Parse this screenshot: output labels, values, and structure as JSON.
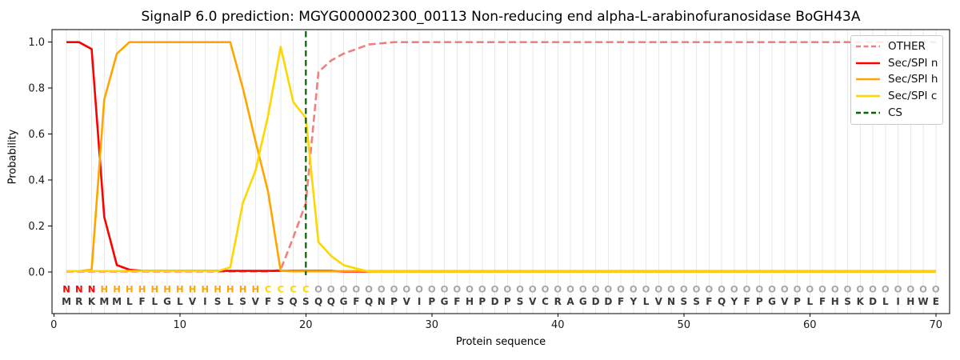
{
  "title": "SignalP 6.0 prediction: MGYG000002300_00113 Non-reducing end alpha-L-arabinofuranosidase BoGH43A",
  "chart_data": {
    "type": "line",
    "title": "SignalP 6.0 prediction: MGYG000002300_00113 Non-reducing end alpha-L-arabinofuranosidase BoGH43A",
    "xlabel": "Protein sequence",
    "ylabel": "Probability",
    "xticks": [
      0,
      10,
      20,
      30,
      40,
      50,
      60,
      70
    ],
    "ytick_labels": [
      "0.0",
      "0.2",
      "0.4",
      "0.6",
      "0.8",
      "1.0"
    ],
    "xlim": [
      -0.15,
      71.2
    ],
    "ylim": [
      -0.18,
      1.05
    ],
    "grid": "vertical gridline at every residue position, light gray, no horizontal grid",
    "legend_position": "upper right",
    "x": [
      1,
      2,
      3,
      4,
      5,
      6,
      7,
      8,
      9,
      10,
      11,
      12,
      13,
      14,
      15,
      16,
      17,
      18,
      19,
      20,
      21,
      22,
      23,
      24,
      25,
      26,
      27,
      28,
      29,
      30,
      31,
      32,
      33,
      34,
      35,
      36,
      37,
      38,
      39,
      40,
      41,
      42,
      43,
      44,
      45,
      46,
      47,
      48,
      49,
      50,
      51,
      52,
      53,
      54,
      55,
      56,
      57,
      58,
      59,
      60,
      61,
      62,
      63,
      64,
      65,
      66,
      67,
      68,
      69,
      70
    ],
    "series": [
      {
        "name": "OTHER",
        "color": "#f08080",
        "style": "dashed",
        "values": [
          0.002,
          0.002,
          0.002,
          0.002,
          0.002,
          0.002,
          0.002,
          0.002,
          0.002,
          0.002,
          0.002,
          0.002,
          0.002,
          0.002,
          0.002,
          0.002,
          0.002,
          0.01,
          0.15,
          0.3,
          0.87,
          0.92,
          0.95,
          0.97,
          0.99,
          0.995,
          1,
          1,
          1,
          1,
          1,
          1,
          1,
          1,
          1,
          1,
          1,
          1,
          1,
          1,
          1,
          1,
          1,
          1,
          1,
          1,
          1,
          1,
          1,
          1,
          1,
          1,
          1,
          1,
          1,
          1,
          1,
          1,
          1,
          1,
          1,
          1,
          1,
          1,
          1,
          1,
          1,
          1,
          1,
          1
        ]
      },
      {
        "name": "Sec/SPI n",
        "color": "#ff0000",
        "style": "solid",
        "values": [
          1,
          1,
          0.97,
          0.24,
          0.03,
          0.01,
          0.005,
          0.005,
          0.005,
          0.005,
          0.005,
          0.005,
          0.005,
          0.005,
          0.005,
          0.005,
          0.005,
          0.005,
          0.005,
          0.005,
          0.005,
          0.005,
          0.002,
          0.002,
          0.002,
          0.002,
          0.002,
          0.002,
          0.002,
          0.002,
          0.002,
          0.002,
          0.002,
          0.002,
          0.002,
          0.002,
          0.002,
          0.002,
          0.002,
          0.002,
          0.002,
          0.002,
          0.002,
          0.002,
          0.002,
          0.002,
          0.002,
          0.002,
          0.002,
          0.002,
          0.002,
          0.002,
          0.002,
          0.002,
          0.002,
          0.002,
          0.002,
          0.002,
          0.002,
          0.002,
          0.002,
          0.002,
          0.002,
          0.002,
          0.002,
          0.002,
          0.002,
          0.002,
          0.002,
          0.002
        ]
      },
      {
        "name": "Sec/SPI h",
        "color": "#ffa500",
        "style": "solid",
        "values": [
          0.004,
          0.004,
          0.01,
          0.75,
          0.95,
          1,
          1,
          1,
          1,
          1,
          1,
          1,
          1,
          1,
          0.8,
          0.57,
          0.35,
          0.005,
          0.003,
          0.003,
          0.003,
          0.003,
          0.004,
          0.004,
          0.004,
          0.004,
          0.004,
          0.004,
          0.004,
          0.004,
          0.004,
          0.004,
          0.004,
          0.004,
          0.004,
          0.004,
          0.004,
          0.004,
          0.004,
          0.004,
          0.004,
          0.004,
          0.004,
          0.004,
          0.004,
          0.004,
          0.004,
          0.004,
          0.004,
          0.004,
          0.004,
          0.004,
          0.004,
          0.004,
          0.004,
          0.004,
          0.004,
          0.004,
          0.004,
          0.004,
          0.004,
          0.004,
          0.004,
          0.004,
          0.004,
          0.004,
          0.004,
          0.004,
          0.004,
          0.004
        ]
      },
      {
        "name": "Sec/SPI c",
        "color": "#ffd700",
        "style": "solid",
        "values": [
          0.004,
          0.004,
          0.004,
          0.004,
          0.004,
          0.004,
          0.004,
          0.004,
          0.004,
          0.004,
          0.004,
          0.004,
          0.004,
          0.02,
          0.3,
          0.44,
          0.68,
          0.98,
          0.74,
          0.67,
          0.13,
          0.07,
          0.03,
          0.015,
          0.002,
          0.002,
          0.002,
          0.002,
          0.002,
          0.002,
          0.002,
          0.002,
          0.002,
          0.002,
          0.002,
          0.002,
          0.002,
          0.002,
          0.002,
          0.002,
          0.002,
          0.002,
          0.002,
          0.002,
          0.002,
          0.002,
          0.002,
          0.002,
          0.002,
          0.002,
          0.002,
          0.002,
          0.002,
          0.002,
          0.002,
          0.002,
          0.002,
          0.002,
          0.002,
          0.002,
          0.002,
          0.002,
          0.002,
          0.002,
          0.002,
          0.002,
          0.002,
          0.002,
          0.002,
          0.002
        ]
      }
    ],
    "cs_marker": {
      "name": "CS",
      "color": "#006400",
      "style": "dashed-vertical",
      "position": 20
    },
    "sequence": "MRKMMLFLGLVISLSVFSQSQQGFQNPVIPGFHPDPSVCRAGDDFYLVNSSFQYFPGVPLFHSKDLIHWE",
    "region_labels": "NNNHHHHHHHHHHHHHCCCCOOOOOOOOOOOOOOOOOOOOOOOOOOOOOOOOOOOOOOOOOOOOOOOOOO",
    "label_colors": {
      "N": "#ff0000",
      "H": "#ffa500",
      "C": "#ffd700",
      "O": "#a6a6a6"
    },
    "sequence_color": "#3a3a3a",
    "legend": [
      {
        "label": "OTHER",
        "color": "#f08080",
        "dashed": true
      },
      {
        "label": "Sec/SPI n",
        "color": "#ff0000",
        "dashed": false
      },
      {
        "label": "Sec/SPI h",
        "color": "#ffa500",
        "dashed": false
      },
      {
        "label": "Sec/SPI c",
        "color": "#ffd700",
        "dashed": false
      },
      {
        "label": "CS",
        "color": "#006400",
        "dashed": true
      }
    ]
  },
  "colors": {
    "background": "#ffffff",
    "grid": "#e9e9e9",
    "spine": "#000000",
    "tick_label": "#1a1a1a"
  }
}
